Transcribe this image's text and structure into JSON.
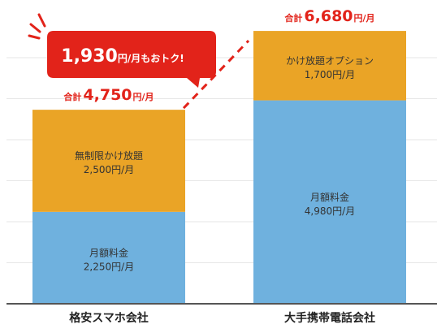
{
  "colors": {
    "base_fee": "#6fb1de",
    "option_fee": "#eaa426",
    "accent": "#e2231a",
    "grid": "#e6e6e6",
    "axis": "#555555"
  },
  "chart_data": {
    "type": "bar",
    "stacked": true,
    "grid": true,
    "categories": [
      "格安スマホ会社",
      "大手携帯電話会社"
    ],
    "series": [
      {
        "key": "base",
        "values": [
          2250,
          4980
        ],
        "labels": [
          {
            "line1": "月額料金",
            "line2": "2,250円/月"
          },
          {
            "line1": "月額料金",
            "line2": "4,980円/月"
          }
        ]
      },
      {
        "key": "option",
        "values": [
          2500,
          1700
        ],
        "labels": [
          {
            "line1": "無制限かけ放題",
            "line2": "2,500円/月"
          },
          {
            "line1": "かけ放題オプション",
            "line2": "1,700円/月"
          }
        ]
      }
    ],
    "totals": [
      {
        "prefix": "合計",
        "value": "4,750",
        "unit": "円/月"
      },
      {
        "prefix": "合計",
        "value": "6,680",
        "unit": "円/月"
      }
    ],
    "callout": {
      "value": "1,930",
      "text": "円/月もおトク!"
    },
    "ylim": [
      0,
      7000
    ]
  }
}
